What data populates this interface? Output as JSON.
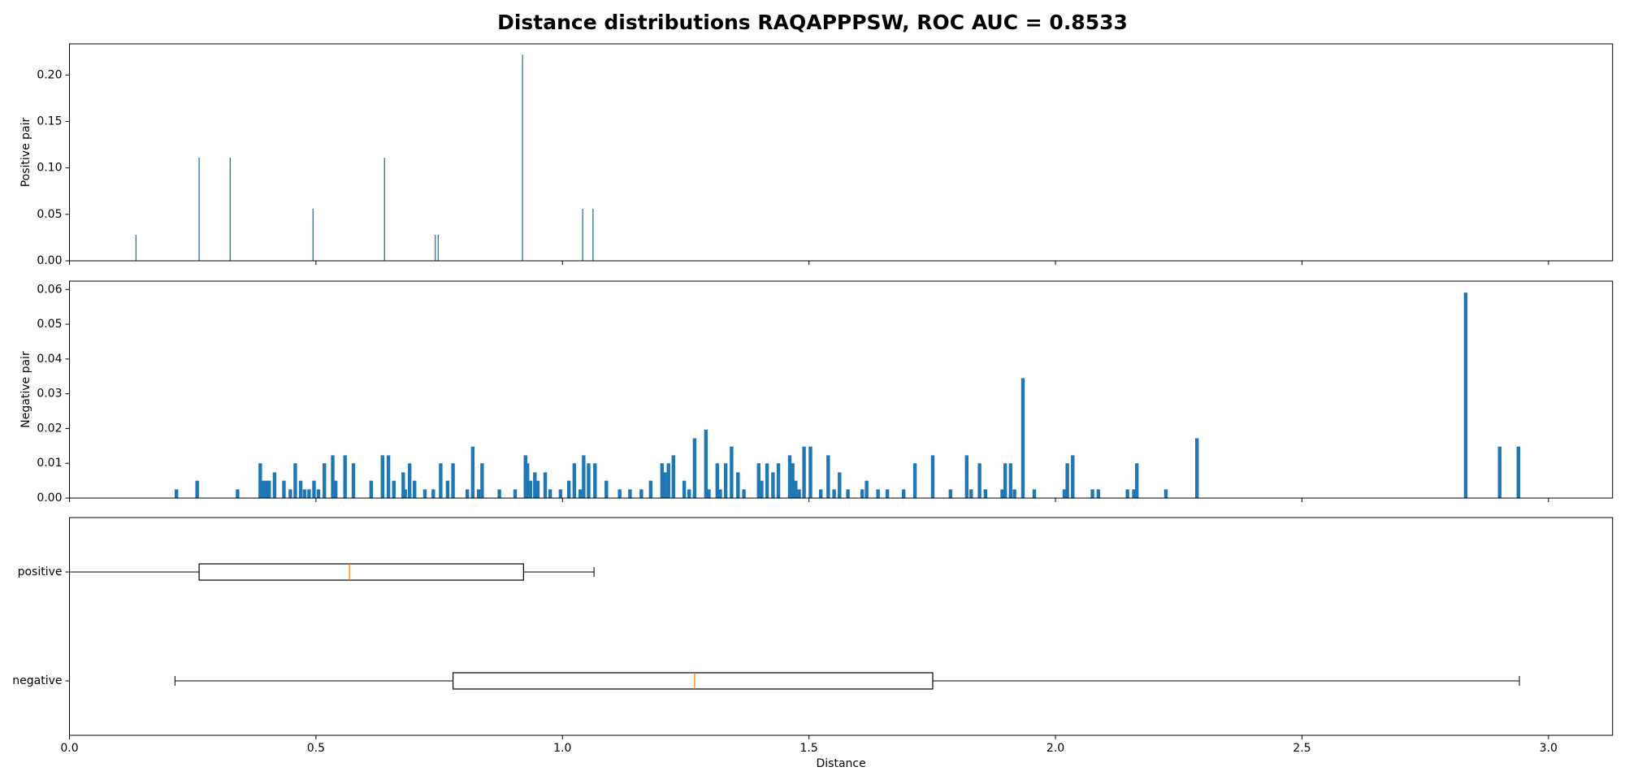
{
  "chart_data": [
    {
      "type": "bar",
      "title": "Distance distributions RAQAPPPSW, ROC AUC = 0.8533",
      "ylabel": "Positive pair",
      "color": "#1f77b4",
      "x": [
        0.135,
        0.263,
        0.326,
        0.494,
        0.639,
        0.742,
        0.748,
        0.919,
        1.041,
        1.062
      ],
      "values": [
        0.028,
        0.111,
        0.111,
        0.056,
        0.111,
        0.028,
        0.028,
        0.222,
        0.056,
        0.056
      ],
      "xlim": [
        0,
        3.13
      ],
      "xticks": [
        0,
        0.5,
        1,
        1.5,
        2,
        2.5,
        3
      ],
      "ylim": [
        0,
        0.2335
      ],
      "yticks": [
        {
          "value": 0,
          "label": "0.00"
        },
        {
          "value": 0.05,
          "label": "0.05"
        },
        {
          "value": 0.1,
          "label": "0.10"
        },
        {
          "value": 0.15,
          "label": "0.15"
        },
        {
          "value": 0.2,
          "label": "0.20"
        }
      ]
    },
    {
      "type": "bar",
      "ylabel": "Negative pair",
      "color": "#1f77b4",
      "x": [
        0.217,
        0.259,
        0.341,
        0.387,
        0.393,
        0.399,
        0.405,
        0.416,
        0.435,
        0.448,
        0.458,
        0.469,
        0.477,
        0.486,
        0.496,
        0.505,
        0.517,
        0.534,
        0.54,
        0.559,
        0.576,
        0.612,
        0.635,
        0.647,
        0.658,
        0.677,
        0.681,
        0.69,
        0.7,
        0.721,
        0.738,
        0.753,
        0.767,
        0.778,
        0.807,
        0.818,
        0.83,
        0.837,
        0.872,
        0.904,
        0.925,
        0.929,
        0.935,
        0.944,
        0.95,
        0.965,
        0.975,
        0.996,
        1.013,
        1.024,
        1.036,
        1.043,
        1.053,
        1.066,
        1.089,
        1.116,
        1.137,
        1.16,
        1.179,
        1.202,
        1.208,
        1.215,
        1.225,
        1.247,
        1.257,
        1.268,
        1.291,
        1.297,
        1.314,
        1.32,
        1.331,
        1.343,
        1.356,
        1.368,
        1.398,
        1.404,
        1.415,
        1.427,
        1.438,
        1.461,
        1.467,
        1.473,
        1.48,
        1.49,
        1.503,
        1.524,
        1.539,
        1.551,
        1.562,
        1.579,
        1.608,
        1.617,
        1.64,
        1.659,
        1.692,
        1.715,
        1.751,
        1.787,
        1.82,
        1.829,
        1.846,
        1.858,
        1.892,
        1.898,
        1.909,
        1.917,
        1.934,
        1.957,
        2.018,
        2.024,
        2.035,
        2.075,
        2.087,
        2.146,
        2.159,
        2.165,
        2.224,
        2.287,
        2.832,
        2.901,
        2.939
      ],
      "values": [
        0.0025,
        0.005,
        0.0025,
        0.01,
        0.005,
        0.005,
        0.005,
        0.0074,
        0.005,
        0.0025,
        0.01,
        0.005,
        0.0025,
        0.0025,
        0.005,
        0.0025,
        0.01,
        0.0123,
        0.005,
        0.0123,
        0.01,
        0.005,
        0.0123,
        0.0123,
        0.005,
        0.0074,
        0.0025,
        0.01,
        0.005,
        0.0025,
        0.0025,
        0.01,
        0.005,
        0.01,
        0.0025,
        0.0148,
        0.0025,
        0.01,
        0.0025,
        0.0025,
        0.0123,
        0.01,
        0.005,
        0.0074,
        0.005,
        0.0074,
        0.0025,
        0.0025,
        0.005,
        0.01,
        0.0025,
        0.0123,
        0.01,
        0.01,
        0.005,
        0.0025,
        0.0025,
        0.0025,
        0.005,
        0.01,
        0.0074,
        0.01,
        0.0123,
        0.005,
        0.0025,
        0.0172,
        0.0197,
        0.0025,
        0.01,
        0.0025,
        0.01,
        0.0148,
        0.0074,
        0.0025,
        0.01,
        0.005,
        0.01,
        0.0074,
        0.01,
        0.0123,
        0.01,
        0.005,
        0.0025,
        0.0148,
        0.0148,
        0.0025,
        0.0123,
        0.0025,
        0.0074,
        0.0025,
        0.0025,
        0.005,
        0.0025,
        0.0025,
        0.0025,
        0.01,
        0.0123,
        0.0025,
        0.0123,
        0.0025,
        0.01,
        0.0025,
        0.0025,
        0.01,
        0.01,
        0.0025,
        0.0345,
        0.0025,
        0.0025,
        0.01,
        0.0123,
        0.0025,
        0.0025,
        0.0025,
        0.0025,
        0.01,
        0.0025,
        0.0172,
        0.0591,
        0.0148,
        0.0148
      ],
      "xlim": [
        0,
        3.13
      ],
      "xticks": [
        0,
        0.5,
        1,
        1.5,
        2,
        2.5,
        3
      ],
      "ylim": [
        0,
        0.0624
      ],
      "yticks": [
        {
          "value": 0,
          "label": "0.00"
        },
        {
          "value": 0.01,
          "label": "0.01"
        },
        {
          "value": 0.02,
          "label": "0.02"
        },
        {
          "value": 0.03,
          "label": "0.03"
        },
        {
          "value": 0.04,
          "label": "0.04"
        },
        {
          "value": 0.05,
          "label": "0.05"
        },
        {
          "value": 0.06,
          "label": "0.06"
        }
      ]
    },
    {
      "type": "boxplot",
      "xlabel": "Distance",
      "categories": [
        "positive",
        "negative"
      ],
      "median_color": "#ff7f0e",
      "boxes": [
        {
          "whislo": 0,
          "q1": 0.263,
          "median": 0.568,
          "q3": 0.921,
          "whishi": 1.064
        },
        {
          "whislo": 0.214,
          "q1": 0.778,
          "median": 1.268,
          "q3": 1.751,
          "whishi": 2.941
        }
      ],
      "xlim": [
        0,
        3.13
      ],
      "xticks": [
        {
          "value": 0,
          "label": "0.0"
        },
        {
          "value": 0.5,
          "label": "0.5"
        },
        {
          "value": 1,
          "label": "1.0"
        },
        {
          "value": 1.5,
          "label": "1.5"
        },
        {
          "value": 2,
          "label": "2.0"
        },
        {
          "value": 2.5,
          "label": "2.5"
        },
        {
          "value": 3,
          "label": "3.0"
        }
      ]
    }
  ]
}
